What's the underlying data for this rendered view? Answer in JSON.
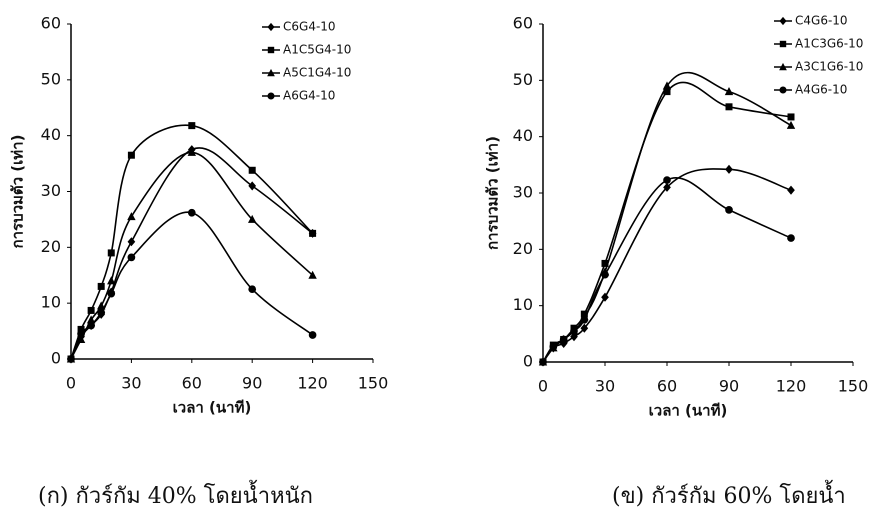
{
  "chart_data": [
    {
      "type": "line",
      "caption": "(ก) กัวร์กัม 40% โดยน้ำหนัก",
      "x_label": "เวลา (นาที)",
      "y_label": "การบวมตัว (เท่า)",
      "x": [
        0,
        5,
        10,
        15,
        20,
        30,
        60,
        90,
        120
      ],
      "xlim": [
        0,
        150
      ],
      "xticks": [
        0,
        30,
        60,
        90,
        120,
        150
      ],
      "ylim": [
        0,
        60
      ],
      "yticks": [
        0,
        10,
        20,
        30,
        40,
        50,
        60
      ],
      "series": [
        {
          "name": "C6G4-10",
          "color": "#000000",
          "marker": "diamond",
          "values": [
            0,
            4,
            6,
            8,
            12,
            21,
            37.5,
            31,
            22.5
          ]
        },
        {
          "name": "A1C5G4-10",
          "color": "#000000",
          "marker": "square",
          "values": [
            0,
            5.3,
            8.7,
            13,
            19,
            36.5,
            41.8,
            33.8,
            22.5
          ]
        },
        {
          "name": "A5C1G4-10",
          "color": "#000000",
          "marker": "triangle",
          "values": [
            0,
            3.5,
            7,
            9.5,
            14,
            25.5,
            37,
            25,
            15
          ]
        },
        {
          "name": "A6G4-10",
          "color": "#000000",
          "marker": "circle",
          "values": [
            0,
            4.5,
            6,
            8.3,
            11.7,
            18.2,
            26.2,
            12.5,
            4.3
          ]
        }
      ]
    },
    {
      "type": "line",
      "caption": "(ข) กัวร์กัม 60% โดยน้ำ",
      "x_label": "เวลา (นาที)",
      "y_label": "การบวมตัว (เท่า)",
      "x": [
        0,
        5,
        10,
        15,
        20,
        30,
        60,
        90,
        120
      ],
      "xlim": [
        0,
        150
      ],
      "xticks": [
        0,
        30,
        60,
        90,
        120,
        150
      ],
      "ylim": [
        0,
        60
      ],
      "yticks": [
        0,
        10,
        20,
        30,
        40,
        50,
        60
      ],
      "series": [
        {
          "name": "C4G6-10",
          "color": "#000000",
          "marker": "diamond",
          "values": [
            0,
            2.5,
            3.3,
            4.5,
            6,
            11.5,
            31,
            34.2,
            30.5
          ]
        },
        {
          "name": "A1C3G6-10",
          "color": "#000000",
          "marker": "square",
          "values": [
            0,
            3,
            4,
            6,
            8.5,
            17.5,
            48,
            45.3,
            43.5
          ]
        },
        {
          "name": "A3C1G6-10",
          "color": "#000000",
          "marker": "triangle",
          "values": [
            0,
            2.5,
            4,
            5.5,
            8,
            16,
            49,
            48,
            42
          ]
        },
        {
          "name": "A4G6-10",
          "color": "#000000",
          "marker": "circle",
          "values": [
            0,
            2.8,
            4,
            5.5,
            7.5,
            15.5,
            32.3,
            27,
            22
          ]
        }
      ]
    }
  ]
}
